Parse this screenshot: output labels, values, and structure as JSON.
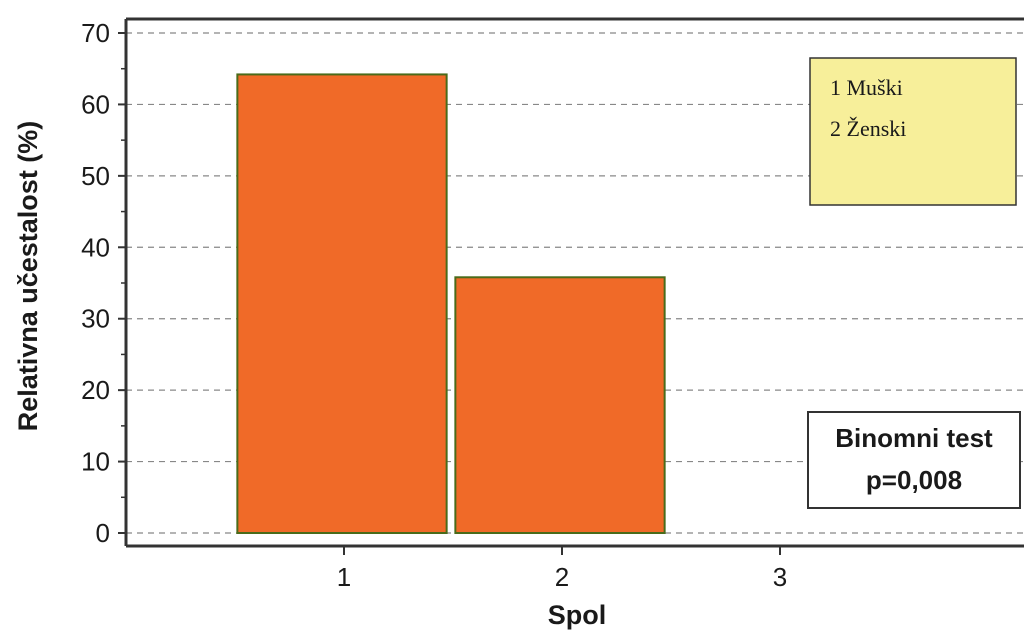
{
  "chart_data": {
    "type": "bar",
    "categories": [
      "1",
      "2"
    ],
    "values": [
      64.2,
      35.8
    ],
    "xlabel": "Spol",
    "ylabel": "Relativna učestalost (%)",
    "ylim": [
      0,
      70
    ],
    "xlim": [
      0,
      3.9
    ],
    "yticks": [
      "0",
      "10",
      "20",
      "30",
      "40",
      "50",
      "60",
      "70"
    ],
    "xticks": [
      "1",
      "2",
      "3"
    ],
    "grid": "horizontal-dashed",
    "bar_color": "#f06a28",
    "bar_edge_color": "#4a6b1a",
    "legend": {
      "placement": "top-right",
      "background": "#f7ef9a",
      "lines": [
        "1 Muški",
        "2 Ženski"
      ]
    },
    "annotation": {
      "placement": "bottom-right",
      "lines": [
        "Binomni test",
        "p=0,008"
      ]
    }
  }
}
